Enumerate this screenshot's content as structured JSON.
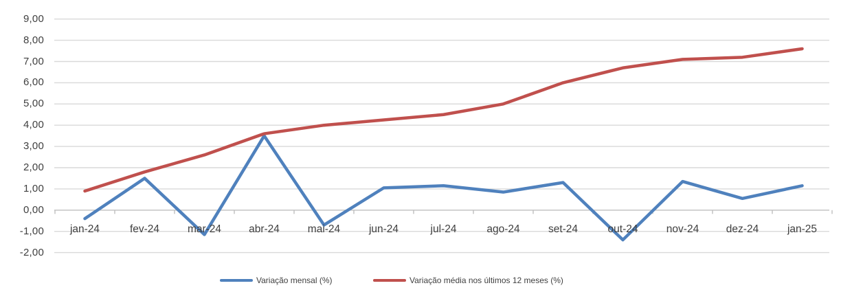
{
  "chart_data": {
    "type": "line",
    "title": "",
    "xlabel": "",
    "ylabel": "",
    "categories": [
      "jan-24",
      "fev-24",
      "mar-24",
      "abr-24",
      "mai-24",
      "jun-24",
      "jul-24",
      "ago-24",
      "set-24",
      "out-24",
      "nov-24",
      "dez-24",
      "jan-25"
    ],
    "series": [
      {
        "name": "Variação mensal (%)",
        "color": "#4f81bd",
        "values": [
          -0.4,
          1.5,
          -1.15,
          3.5,
          -0.7,
          1.05,
          1.15,
          0.85,
          1.3,
          -1.4,
          1.35,
          0.55,
          1.15
        ]
      },
      {
        "name": "Variação média nos últimos 12 meses (%)",
        "color": "#c0504d",
        "values": [
          0.9,
          1.8,
          2.6,
          3.6,
          4.0,
          4.25,
          4.5,
          5.0,
          6.0,
          6.7,
          7.1,
          7.2,
          7.6
        ]
      }
    ],
    "ylim": [
      -2,
      9
    ],
    "y_step": 1,
    "y_tick_labels": [
      "9,00",
      "8,00",
      "7,00",
      "6,00",
      "5,00",
      "4,00",
      "3,00",
      "2,00",
      "1,00",
      "0,00",
      "-1,00",
      "-2,00"
    ],
    "grid": true,
    "legend_position": "bottom"
  },
  "colors": {
    "background": "#ffffff",
    "gridline": "#d9d9d9",
    "axis_line": "#bfbfbf",
    "tick_mark": "#bfbfbf",
    "label_text": "#3f3f3f"
  }
}
